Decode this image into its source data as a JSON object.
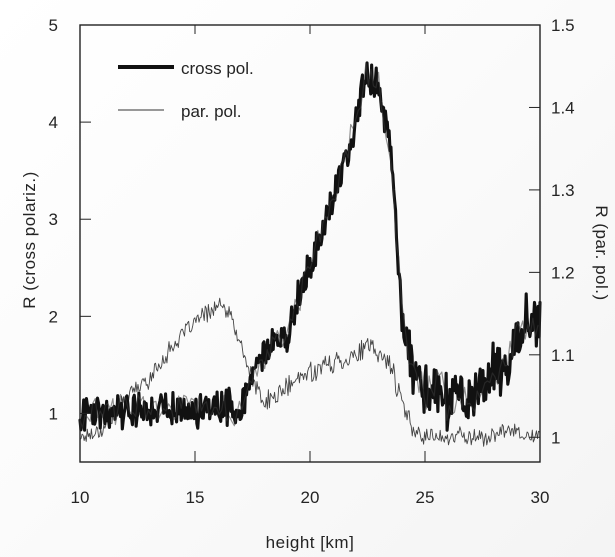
{
  "chart_data": {
    "type": "line",
    "title": "",
    "xlabel": "height [km]",
    "ylabel_left": "R (cross polariz.)",
    "ylabel_right": "R (par. pol.)",
    "xlim": [
      10,
      30
    ],
    "ylim_left": [
      0.5,
      5
    ],
    "ylim_right": [
      0.97,
      1.5
    ],
    "x_ticks": [
      10,
      15,
      20,
      25,
      30
    ],
    "y_left_ticks": [
      1,
      2,
      3,
      4,
      5
    ],
    "y_right_ticks": [
      1,
      1.1,
      1.2,
      1.3,
      1.4,
      1.5
    ],
    "legend": {
      "location": "top-left",
      "entries": [
        "cross pol.",
        "par. pol."
      ]
    },
    "series": [
      {
        "name": "cross pol.",
        "axis": "left",
        "x": [
          10,
          11,
          12,
          13,
          14,
          15,
          16,
          17,
          17.5,
          18,
          18.5,
          19,
          19.5,
          20,
          20.5,
          21,
          21.5,
          22,
          22.5,
          23,
          23.5,
          24,
          24.5,
          25,
          25.5,
          26,
          26.5,
          27,
          27.5,
          28,
          28.5,
          29,
          29.5,
          30
        ],
        "values": [
          1.0,
          1.05,
          1.05,
          1.05,
          1.05,
          1.05,
          1.05,
          1.05,
          1.4,
          1.6,
          1.7,
          1.8,
          2.2,
          2.5,
          2.9,
          3.2,
          3.6,
          4.0,
          4.5,
          4.4,
          3.7,
          2.0,
          1.4,
          1.2,
          1.3,
          1.1,
          1.2,
          1.1,
          1.3,
          1.5,
          1.4,
          1.8,
          2.0,
          1.9
        ]
      },
      {
        "name": "par. pol.",
        "axis": "right",
        "x": [
          10,
          11,
          12,
          13,
          14,
          15,
          16,
          16.5,
          17,
          17.5,
          18,
          18.5,
          19,
          19.5,
          20,
          20.5,
          21,
          21.5,
          22,
          22.5,
          23,
          23.5,
          24,
          24.5,
          25,
          25.5,
          26,
          26.5,
          27,
          27.5,
          28,
          28.5,
          29,
          29.5,
          30
        ],
        "values": [
          1.0,
          1.01,
          1.05,
          1.07,
          1.11,
          1.14,
          1.16,
          1.15,
          1.11,
          1.07,
          1.04,
          1.05,
          1.06,
          1.07,
          1.08,
          1.085,
          1.09,
          1.095,
          1.1,
          1.11,
          1.1,
          1.09,
          1.04,
          1.01,
          1.0,
          1.005,
          0.995,
          1.005,
          1.0,
          1.0,
          1.0,
          1.01,
          1.01,
          1.0,
          1.0
        ]
      }
    ]
  }
}
